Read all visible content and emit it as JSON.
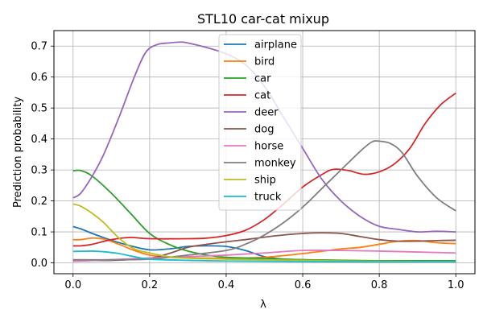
{
  "chart_data": {
    "type": "line",
    "title": "STL10 car-cat mixup",
    "xlabel": "λ",
    "ylabel": "Prediction probability",
    "xlim": [
      -0.05,
      1.05
    ],
    "ylim": [
      -0.035,
      0.75
    ],
    "xticks": [
      0.0,
      0.2,
      0.4,
      0.6,
      0.8,
      1.0
    ],
    "xtick_labels": [
      "0.0",
      "0.2",
      "0.4",
      "0.6",
      "0.8",
      "1.0"
    ],
    "yticks": [
      0.0,
      0.1,
      0.2,
      0.3,
      0.4,
      0.5,
      0.6,
      0.7
    ],
    "ytick_labels": [
      "0.0",
      "0.1",
      "0.2",
      "0.3",
      "0.4",
      "0.5",
      "0.6",
      "0.7"
    ],
    "grid": true,
    "legend_position": "upper-center",
    "series": [
      {
        "name": "airplane",
        "color": "#1f77b4",
        "points": [
          [
            0,
            0.117
          ],
          [
            0.02,
            0.11
          ],
          [
            0.05,
            0.095
          ],
          [
            0.1,
            0.073
          ],
          [
            0.15,
            0.055
          ],
          [
            0.2,
            0.042
          ],
          [
            0.25,
            0.045
          ],
          [
            0.3,
            0.053
          ],
          [
            0.35,
            0.055
          ],
          [
            0.4,
            0.053
          ],
          [
            0.45,
            0.04
          ],
          [
            0.5,
            0.02
          ],
          [
            0.55,
            0.012
          ],
          [
            0.6,
            0.01
          ],
          [
            0.7,
            0.008
          ],
          [
            0.8,
            0.006
          ],
          [
            0.9,
            0.005
          ],
          [
            1.0,
            0.004
          ]
        ]
      },
      {
        "name": "bird",
        "color": "#ff7f0e",
        "points": [
          [
            0,
            0.075
          ],
          [
            0.02,
            0.075
          ],
          [
            0.05,
            0.08
          ],
          [
            0.08,
            0.077
          ],
          [
            0.12,
            0.06
          ],
          [
            0.16,
            0.04
          ],
          [
            0.2,
            0.025
          ],
          [
            0.25,
            0.018
          ],
          [
            0.3,
            0.016
          ],
          [
            0.4,
            0.015
          ],
          [
            0.5,
            0.018
          ],
          [
            0.6,
            0.03
          ],
          [
            0.7,
            0.045
          ],
          [
            0.75,
            0.05
          ],
          [
            0.8,
            0.06
          ],
          [
            0.85,
            0.07
          ],
          [
            0.9,
            0.072
          ],
          [
            0.95,
            0.065
          ],
          [
            1.0,
            0.062
          ]
        ]
      },
      {
        "name": "car",
        "color": "#2ca02c",
        "points": [
          [
            0,
            0.297
          ],
          [
            0.02,
            0.298
          ],
          [
            0.05,
            0.28
          ],
          [
            0.1,
            0.225
          ],
          [
            0.15,
            0.16
          ],
          [
            0.2,
            0.095
          ],
          [
            0.25,
            0.06
          ],
          [
            0.3,
            0.038
          ],
          [
            0.35,
            0.025
          ],
          [
            0.4,
            0.018
          ],
          [
            0.5,
            0.014
          ],
          [
            0.6,
            0.01
          ],
          [
            0.7,
            0.008
          ],
          [
            0.8,
            0.007
          ],
          [
            0.9,
            0.007
          ],
          [
            1.0,
            0.007
          ]
        ]
      },
      {
        "name": "cat",
        "color": "#d62728",
        "points": [
          [
            0,
            0.055
          ],
          [
            0.02,
            0.055
          ],
          [
            0.05,
            0.06
          ],
          [
            0.1,
            0.075
          ],
          [
            0.15,
            0.082
          ],
          [
            0.2,
            0.078
          ],
          [
            0.3,
            0.078
          ],
          [
            0.35,
            0.08
          ],
          [
            0.4,
            0.088
          ],
          [
            0.45,
            0.105
          ],
          [
            0.5,
            0.14
          ],
          [
            0.55,
            0.19
          ],
          [
            0.6,
            0.245
          ],
          [
            0.65,
            0.285
          ],
          [
            0.68,
            0.302
          ],
          [
            0.72,
            0.298
          ],
          [
            0.76,
            0.286
          ],
          [
            0.8,
            0.294
          ],
          [
            0.84,
            0.32
          ],
          [
            0.88,
            0.37
          ],
          [
            0.92,
            0.45
          ],
          [
            0.96,
            0.51
          ],
          [
            1.0,
            0.548
          ]
        ]
      },
      {
        "name": "deer",
        "color": "#9467bd",
        "points": [
          [
            0,
            0.21
          ],
          [
            0.02,
            0.225
          ],
          [
            0.05,
            0.28
          ],
          [
            0.08,
            0.35
          ],
          [
            0.12,
            0.47
          ],
          [
            0.16,
            0.6
          ],
          [
            0.19,
            0.68
          ],
          [
            0.22,
            0.705
          ],
          [
            0.25,
            0.71
          ],
          [
            0.28,
            0.713
          ],
          [
            0.3,
            0.71
          ],
          [
            0.35,
            0.695
          ],
          [
            0.4,
            0.675
          ],
          [
            0.45,
            0.64
          ],
          [
            0.5,
            0.57
          ],
          [
            0.55,
            0.47
          ],
          [
            0.6,
            0.37
          ],
          [
            0.65,
            0.27
          ],
          [
            0.7,
            0.2
          ],
          [
            0.75,
            0.15
          ],
          [
            0.8,
            0.118
          ],
          [
            0.85,
            0.108
          ],
          [
            0.9,
            0.1
          ],
          [
            0.95,
            0.102
          ],
          [
            1.0,
            0.1
          ]
        ]
      },
      {
        "name": "dog",
        "color": "#8c564b",
        "points": [
          [
            0,
            0.008
          ],
          [
            0.1,
            0.008
          ],
          [
            0.2,
            0.015
          ],
          [
            0.25,
            0.03
          ],
          [
            0.3,
            0.05
          ],
          [
            0.35,
            0.06
          ],
          [
            0.4,
            0.068
          ],
          [
            0.45,
            0.075
          ],
          [
            0.5,
            0.083
          ],
          [
            0.55,
            0.09
          ],
          [
            0.6,
            0.095
          ],
          [
            0.65,
            0.097
          ],
          [
            0.7,
            0.095
          ],
          [
            0.75,
            0.085
          ],
          [
            0.8,
            0.075
          ],
          [
            0.85,
            0.07
          ],
          [
            0.9,
            0.07
          ],
          [
            0.95,
            0.072
          ],
          [
            1.0,
            0.073
          ]
        ]
      },
      {
        "name": "horse",
        "color": "#e377c2",
        "points": [
          [
            0,
            0.005
          ],
          [
            0.1,
            0.01
          ],
          [
            0.2,
            0.016
          ],
          [
            0.3,
            0.02
          ],
          [
            0.4,
            0.025
          ],
          [
            0.5,
            0.032
          ],
          [
            0.6,
            0.04
          ],
          [
            0.7,
            0.04
          ],
          [
            0.8,
            0.038
          ],
          [
            0.9,
            0.035
          ],
          [
            1.0,
            0.032
          ]
        ]
      },
      {
        "name": "monkey",
        "color": "#7f7f7f",
        "points": [
          [
            0,
            0.01
          ],
          [
            0.1,
            0.01
          ],
          [
            0.2,
            0.012
          ],
          [
            0.3,
            0.025
          ],
          [
            0.4,
            0.04
          ],
          [
            0.45,
            0.06
          ],
          [
            0.5,
            0.09
          ],
          [
            0.55,
            0.13
          ],
          [
            0.6,
            0.18
          ],
          [
            0.65,
            0.24
          ],
          [
            0.7,
            0.3
          ],
          [
            0.75,
            0.36
          ],
          [
            0.78,
            0.39
          ],
          [
            0.8,
            0.393
          ],
          [
            0.83,
            0.385
          ],
          [
            0.86,
            0.355
          ],
          [
            0.9,
            0.28
          ],
          [
            0.95,
            0.21
          ],
          [
            1.0,
            0.168
          ]
        ]
      },
      {
        "name": "ship",
        "color": "#bcbd22",
        "points": [
          [
            0,
            0.19
          ],
          [
            0.02,
            0.183
          ],
          [
            0.05,
            0.16
          ],
          [
            0.08,
            0.13
          ],
          [
            0.12,
            0.08
          ],
          [
            0.16,
            0.045
          ],
          [
            0.2,
            0.032
          ],
          [
            0.25,
            0.02
          ],
          [
            0.3,
            0.015
          ],
          [
            0.4,
            0.012
          ],
          [
            0.5,
            0.01
          ],
          [
            0.6,
            0.008
          ],
          [
            0.7,
            0.006
          ],
          [
            0.8,
            0.005
          ],
          [
            0.9,
            0.004
          ],
          [
            1.0,
            0.004
          ]
        ]
      },
      {
        "name": "truck",
        "color": "#17becf",
        "points": [
          [
            0,
            0.037
          ],
          [
            0.05,
            0.038
          ],
          [
            0.08,
            0.036
          ],
          [
            0.12,
            0.03
          ],
          [
            0.16,
            0.02
          ],
          [
            0.2,
            0.012
          ],
          [
            0.3,
            0.008
          ],
          [
            0.4,
            0.006
          ],
          [
            0.5,
            0.005
          ],
          [
            0.6,
            0.004
          ],
          [
            0.8,
            0.003
          ],
          [
            1.0,
            0.003
          ]
        ]
      }
    ]
  }
}
